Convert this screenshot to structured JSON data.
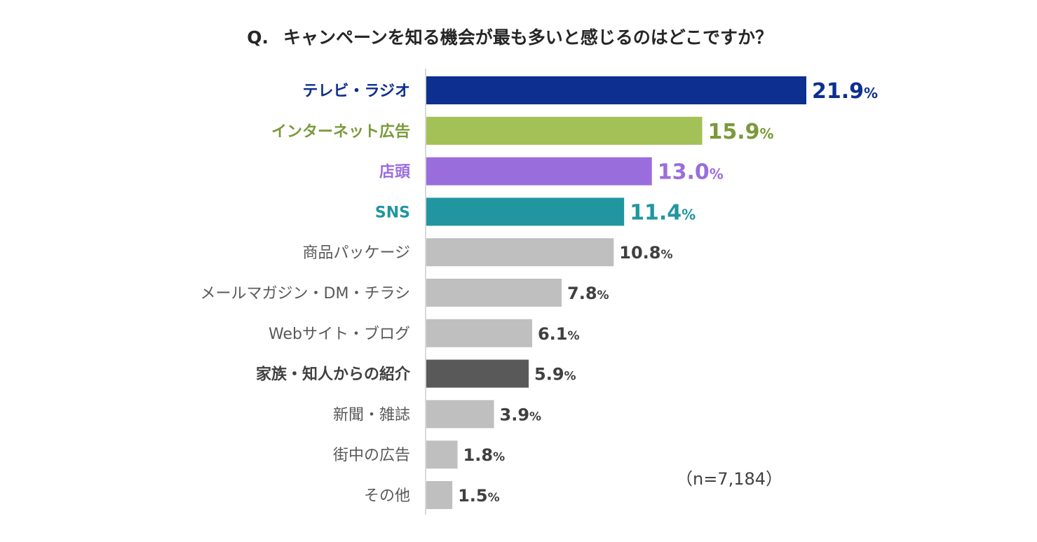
{
  "chart_data": {
    "type": "bar",
    "orientation": "horizontal",
    "title_prefix": "Q.",
    "title": "キャンペーンを知る機会が最も多いと感じるのはどこですか？",
    "categories": [
      "テレビ・ラジオ",
      "インターネット広告",
      "店頭",
      "SNS",
      "商品パッケージ",
      "メールマガジン・DM・チラシ",
      "Webサイト・ブログ",
      "家族・知人からの紹介",
      "新聞・雑誌",
      "街中の広告",
      "その他"
    ],
    "values": [
      21.9,
      15.9,
      13.0,
      11.4,
      10.8,
      7.8,
      6.1,
      5.9,
      3.9,
      1.8,
      1.5
    ],
    "value_labels": [
      "21.9",
      "15.9",
      "13.0",
      "11.4",
      "10.8",
      "7.8",
      "6.1",
      "5.9",
      "3.9",
      "1.8",
      "1.5"
    ],
    "unit": "%",
    "bar_colors": [
      "#0d2f8f",
      "#a3c156",
      "#9a6ddd",
      "#2196a0",
      "#bfbfbf",
      "#bfbfbf",
      "#bfbfbf",
      "#595959",
      "#bfbfbf",
      "#bfbfbf",
      "#bfbfbf"
    ],
    "label_colors": [
      "#0d2f8f",
      "#7a9a3a",
      "#9a6ddd",
      "#2196a0",
      "#595959",
      "#595959",
      "#595959",
      "#404040",
      "#595959",
      "#595959",
      "#595959"
    ],
    "value_colors": [
      "#0d2f8f",
      "#7a9a3a",
      "#9a6ddd",
      "#2196a0",
      "#404040",
      "#404040",
      "#404040",
      "#404040",
      "#404040",
      "#404040",
      "#404040"
    ],
    "highlighted": [
      true,
      true,
      true,
      true,
      false,
      false,
      false,
      true,
      false,
      false,
      false
    ],
    "xlim": [
      0,
      21.9
    ],
    "sample_note": "（n=7,184）",
    "xlabel": "",
    "ylabel": ""
  }
}
